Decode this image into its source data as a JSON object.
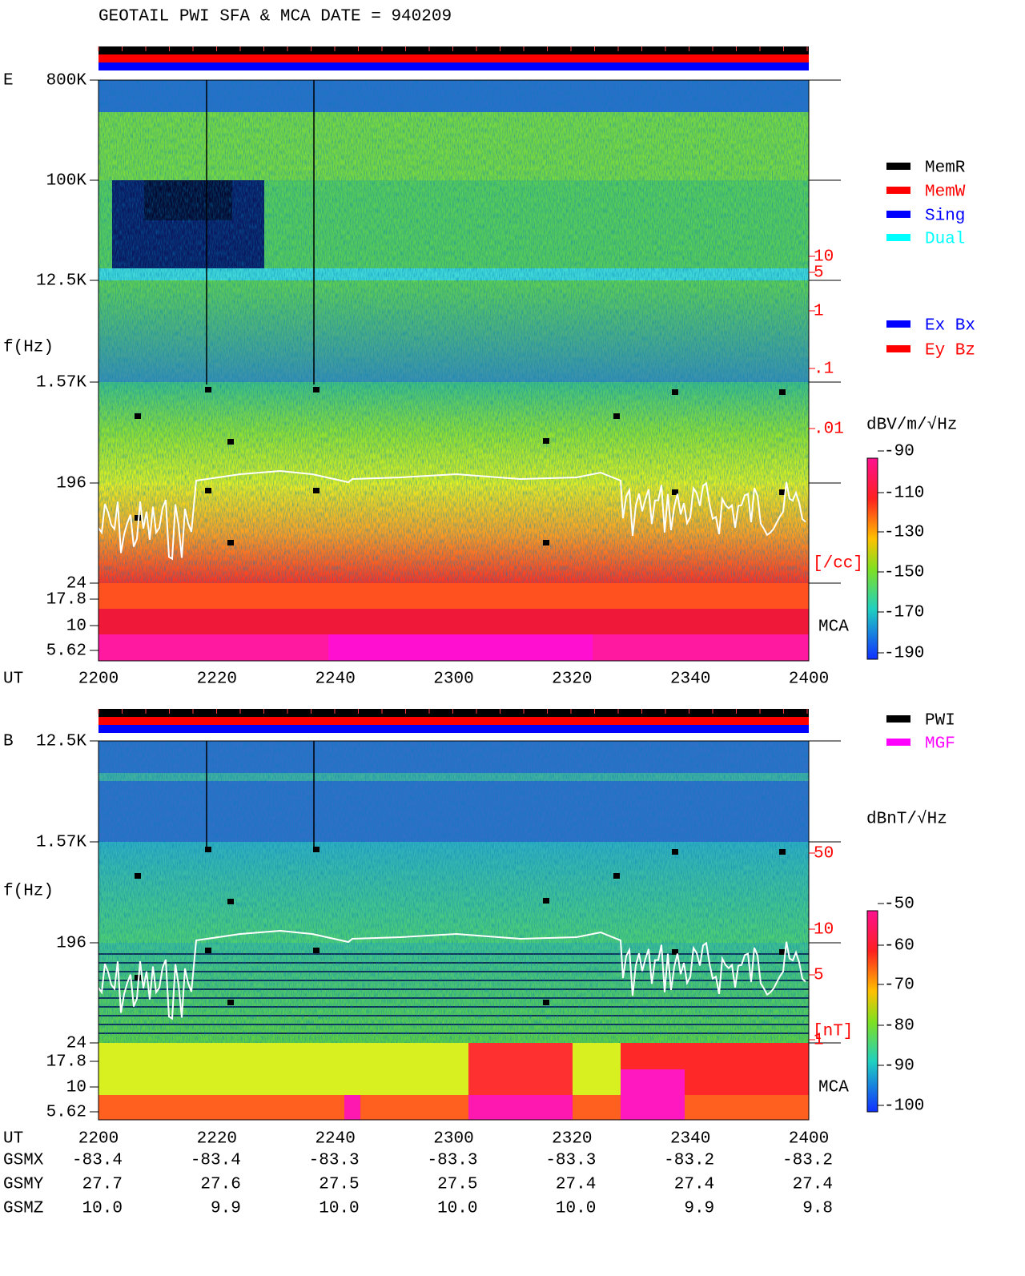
{
  "title": "GEOTAIL  PWI SFA & MCA   DATE = 940209",
  "panels": [
    {
      "label": "E",
      "y_label": "f(Hz)",
      "y_ticks": [
        "800K",
        "100K",
        "12.5K",
        "1.57K",
        "196",
        "24",
        "17.8",
        "10",
        "5.62"
      ],
      "density_ticks": [
        "10",
        "5",
        "1",
        ".1",
        ".01"
      ],
      "density_unit": "[/cc]",
      "mca_label": "MCA",
      "x_label": "UT",
      "x_ticks": [
        "2200",
        "2220",
        "2240",
        "2300",
        "2320",
        "2340",
        "2400"
      ],
      "legend": [
        {
          "name": "MemR",
          "color": "#000000"
        },
        {
          "name": "MemW",
          "color": "#ff0000"
        },
        {
          "name": "Sing",
          "color": "#0000ff"
        },
        {
          "name": "Dual",
          "color": "#00ffff"
        }
      ],
      "legend2": [
        {
          "name": "Ex Bx",
          "color": "#0000ff"
        },
        {
          "name": "Ey Bz",
          "color": "#ff0000"
        }
      ],
      "colorbar": {
        "unit": "dBV/m/√Hz",
        "ticks": [
          -90,
          -110,
          -130,
          -150,
          -170,
          -190
        ]
      }
    },
    {
      "label": "B",
      "y_label": "f(Hz)",
      "y_ticks": [
        "12.5K",
        "1.57K",
        "196",
        "24",
        "17.8",
        "10",
        "5.62"
      ],
      "density_ticks": [
        "50",
        "10",
        "5",
        "1"
      ],
      "density_unit": "[nT]",
      "mca_label": "MCA",
      "x_label": "UT",
      "x_ticks": [
        "2200",
        "2220",
        "2240",
        "2300",
        "2320",
        "2340",
        "2400"
      ],
      "legend": [
        {
          "name": "PWI",
          "color": "#000000"
        },
        {
          "name": "MGF",
          "color": "#ff00ff"
        }
      ],
      "colorbar": {
        "unit": "dBnT/√Hz",
        "ticks": [
          -50,
          -60,
          -70,
          -80,
          -90,
          -100
        ]
      }
    }
  ],
  "orbit": {
    "labels": [
      "GSMX",
      "GSMY",
      "GSMZ"
    ],
    "rows": [
      [
        "-83.4",
        "-83.4",
        "-83.3",
        "-83.3",
        "-83.3",
        "-83.2",
        "-83.2"
      ],
      [
        "27.7",
        "27.6",
        "27.5",
        "27.5",
        "27.4",
        "27.4",
        "27.4"
      ],
      [
        "10.0",
        "9.9",
        "10.0",
        "10.0",
        "10.0",
        "9.9",
        "9.8"
      ]
    ]
  }
}
